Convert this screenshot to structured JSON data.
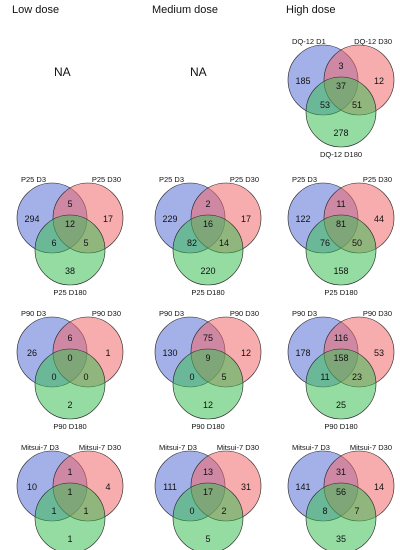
{
  "columns": [
    "Low dose",
    "Medium dose",
    "High dose"
  ],
  "na_label": "NA",
  "colors": {
    "set1": "#5a6fd6",
    "set2": "#f0686a",
    "set3": "#3cbf55"
  },
  "panels": [
    {
      "row": 0,
      "col": 0,
      "na": true
    },
    {
      "row": 0,
      "col": 1,
      "na": true
    },
    {
      "row": 0,
      "col": 2,
      "labels": [
        "DQ-12 D1",
        "DQ-12 D30",
        "DQ-12 D180"
      ],
      "counts": {
        "a": "185",
        "ab": "3",
        "b": "12",
        "abc": "37",
        "ac": "53",
        "bc": "51",
        "c": "278"
      }
    },
    {
      "row": 1,
      "col": 0,
      "labels": [
        "P25 D3",
        "P25 D30",
        "P25 D180"
      ],
      "counts": {
        "a": "294",
        "ab": "5",
        "b": "17",
        "abc": "12",
        "ac": "6",
        "bc": "5",
        "c": "38"
      }
    },
    {
      "row": 1,
      "col": 1,
      "labels": [
        "P25 D3",
        "P25 D30",
        "P25  D180"
      ],
      "counts": {
        "a": "229",
        "ab": "2",
        "b": "17",
        "abc": "16",
        "ac": "82",
        "bc": "14",
        "c": "220"
      }
    },
    {
      "row": 1,
      "col": 2,
      "labels": [
        "P25 D3",
        "P25 D30",
        "P25 D180"
      ],
      "counts": {
        "a": "122",
        "ab": "11",
        "b": "44",
        "abc": "81",
        "ac": "76",
        "bc": "50",
        "c": "158"
      }
    },
    {
      "row": 2,
      "col": 0,
      "labels": [
        "P90 D3",
        "P90 D30",
        "P90 D180"
      ],
      "counts": {
        "a": "26",
        "ab": "6",
        "b": "1",
        "abc": "0",
        "ac": "0",
        "bc": "0",
        "c": "2"
      }
    },
    {
      "row": 2,
      "col": 1,
      "labels": [
        "P90 D3",
        "P90 D30",
        "P90 D180"
      ],
      "counts": {
        "a": "130",
        "ab": "75",
        "b": "12",
        "abc": "9",
        "ac": "0",
        "bc": "5",
        "c": "12"
      }
    },
    {
      "row": 2,
      "col": 2,
      "labels": [
        "P90 D3",
        "P90 D30",
        "P90 D180"
      ],
      "counts": {
        "a": "178",
        "ab": "116",
        "b": "53",
        "abc": "158",
        "ac": "11",
        "bc": "23",
        "c": "25"
      }
    },
    {
      "row": 3,
      "col": 0,
      "labels": [
        "Mitsui-7 D3",
        "Mitsui-7 D30",
        "Mitsui-7 D180"
      ],
      "counts": {
        "a": "10",
        "ab": "1",
        "b": "4",
        "abc": "1",
        "ac": "1",
        "bc": "1",
        "c": "1"
      }
    },
    {
      "row": 3,
      "col": 1,
      "labels": [
        "Mitsui-7 D3",
        "Mitsui-7 D30",
        "Mitsui-7 D180"
      ],
      "counts": {
        "a": "111",
        "ab": "13",
        "b": "31",
        "abc": "17",
        "ac": "0",
        "bc": "2",
        "c": "5"
      }
    },
    {
      "row": 3,
      "col": 2,
      "labels": [
        "Mitsui-7 D3",
        "Mitsui-7 D30",
        "Mitsui-7 D180"
      ],
      "counts": {
        "a": "141",
        "ab": "31",
        "b": "14",
        "abc": "56",
        "ac": "8",
        "bc": "7",
        "c": "35"
      }
    }
  ]
}
